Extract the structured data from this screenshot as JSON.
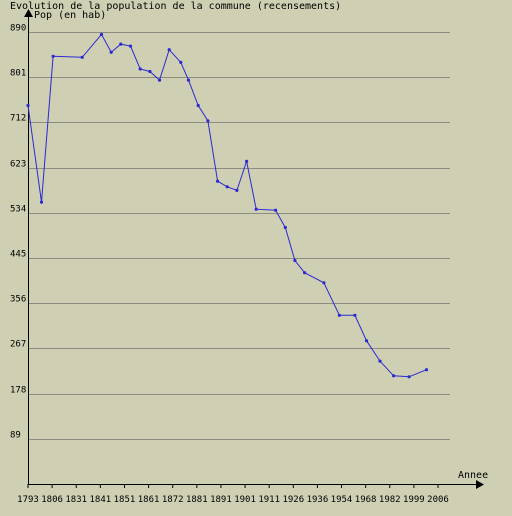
{
  "chart_data": {
    "type": "line",
    "title": "Evolution de la population de la commune (recensements)",
    "ylabel": "Pop (en hab)",
    "xlabel": "Annee",
    "x_tick_labels": [
      "1793",
      "1806",
      "1831",
      "1841",
      "1851",
      "1861",
      "1872",
      "1881",
      "1891",
      "1901",
      "1911",
      "1926",
      "1936",
      "1954",
      "1968",
      "1982",
      "1999",
      "2006"
    ],
    "y_ticks": [
      89,
      178,
      267,
      356,
      445,
      534,
      623,
      712,
      801,
      890
    ],
    "ylim": [
      0,
      920
    ],
    "grid": true,
    "colors": {
      "background": "#cfcfb4",
      "grid": "#8c8c82",
      "line": "#2a2ad2"
    },
    "series": [
      {
        "x": [
          1793,
          1800,
          1806,
          1821,
          1831,
          1836,
          1841,
          1846,
          1851,
          1856,
          1861,
          1866,
          1872,
          1876,
          1881,
          1886,
          1891,
          1896,
          1901,
          1906,
          1911,
          1921,
          1926,
          1931,
          1936,
          1946,
          1954,
          1962,
          1968,
          1975,
          1982,
          1990,
          1999
        ],
        "values": [
          745,
          555,
          842,
          840,
          885,
          850,
          866,
          862,
          817,
          812,
          795,
          855,
          830,
          795,
          745,
          715,
          596,
          585,
          578,
          635,
          541,
          539,
          505,
          440,
          416,
          396,
          332,
          332,
          282,
          242,
          213,
          211,
          225
        ]
      }
    ]
  }
}
